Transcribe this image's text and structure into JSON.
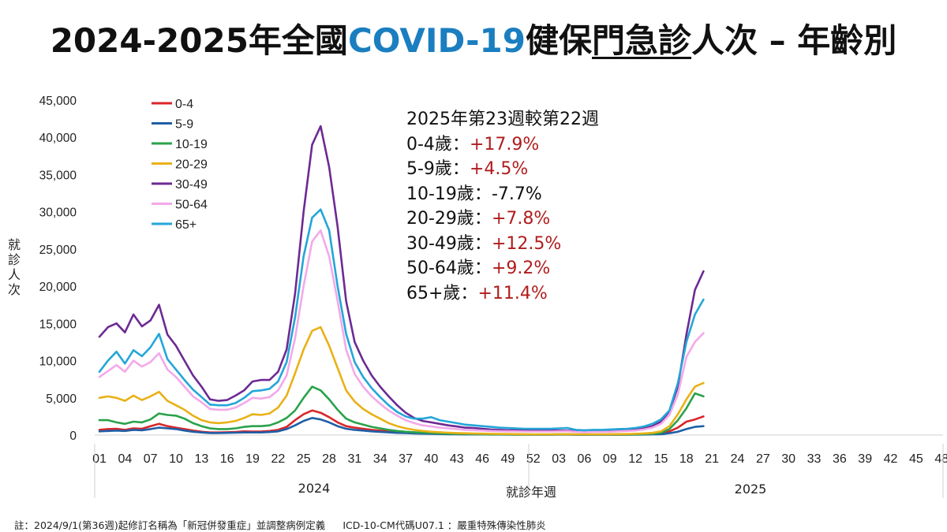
{
  "title": {
    "part1": "2024-2025年全國",
    "part2": "COVID-19",
    "part3": "健保",
    "part4": "門急診",
    "part5": "人次 – 年齡別"
  },
  "annotation": {
    "heading": "2025年第23週較第22週",
    "rows": [
      {
        "label": "0-4歲：",
        "value": "+17.9%",
        "color": "#b01c1c"
      },
      {
        "label": "5-9歲：",
        "value": "+4.5%",
        "color": "#b01c1c"
      },
      {
        "label": "10-19歲：",
        "value": "-7.7%",
        "color": "#111111"
      },
      {
        "label": "20-29歲：",
        "value": "+7.8%",
        "color": "#b01c1c"
      },
      {
        "label": "30-49歲：",
        "value": "+12.5%",
        "color": "#b01c1c"
      },
      {
        "label": "50-64歲：",
        "value": "+9.2%",
        "color": "#b01c1c"
      },
      {
        "label": "65+歲：",
        "value": "+11.4%",
        "color": "#b01c1c"
      }
    ]
  },
  "footnote": {
    "left": "註：2024/9/1(第36週)起修訂名稱為「新冠併發重症」並調整病例定義",
    "right": "ICD-10-CM代碼U07.1 ：嚴重特殊傳染性肺炎"
  },
  "chart_data": {
    "type": "line",
    "ylabel": "就診人次",
    "xlabel": "就診年週",
    "ylim": [
      0,
      45000
    ],
    "yticks": [
      0,
      5000,
      10000,
      15000,
      20000,
      25000,
      30000,
      35000,
      40000,
      45000
    ],
    "ytick_labels": [
      "0",
      "5,000",
      "10,000",
      "15,000",
      "20,000",
      "25,000",
      "30,000",
      "35,000",
      "40,000",
      "45,000"
    ],
    "xtick_labels": [
      "01",
      "04",
      "07",
      "10",
      "13",
      "16",
      "19",
      "22",
      "25",
      "28",
      "31",
      "34",
      "37",
      "40",
      "43",
      "46",
      "49",
      "52",
      "03",
      "06",
      "09",
      "12",
      "15",
      "18",
      "21",
      "24",
      "27",
      "30",
      "33",
      "36",
      "39",
      "42",
      "45",
      "48"
    ],
    "year_labels": [
      "2024",
      "2025"
    ],
    "legend_position": "top-left",
    "series": [
      {
        "name": "0-4",
        "color": "#d9262b",
        "values": [
          700,
          800,
          850,
          700,
          900,
          850,
          1200,
          1500,
          1200,
          1000,
          800,
          600,
          450,
          350,
          350,
          380,
          420,
          500,
          480,
          480,
          550,
          700,
          1100,
          2000,
          2800,
          3300,
          3000,
          2400,
          1700,
          1200,
          1000,
          850,
          700,
          600,
          500,
          400,
          350,
          300,
          250,
          200,
          180,
          150,
          130,
          120,
          110,
          100,
          90,
          80,
          80,
          70,
          70,
          70,
          70,
          70,
          80,
          80,
          60,
          50,
          60,
          60,
          60,
          60,
          60,
          80,
          100,
          130,
          200,
          500,
          1000,
          1800,
          2100,
          2500
        ]
      },
      {
        "name": "5-9",
        "color": "#1f5fa6",
        "values": [
          500,
          550,
          600,
          550,
          700,
          650,
          800,
          1000,
          900,
          800,
          600,
          450,
          350,
          280,
          280,
          300,
          320,
          350,
          350,
          350,
          400,
          500,
          800,
          1300,
          1900,
          2300,
          2100,
          1700,
          1200,
          850,
          700,
          600,
          500,
          430,
          360,
          300,
          260,
          220,
          190,
          160,
          140,
          120,
          110,
          100,
          90,
          80,
          70,
          70,
          60,
          60,
          60,
          60,
          60,
          60,
          60,
          60,
          50,
          40,
          50,
          50,
          50,
          50,
          50,
          60,
          70,
          90,
          120,
          250,
          450,
          800,
          1100,
          1200
        ]
      },
      {
        "name": "10-19",
        "color": "#2aa24a",
        "values": [
          2000,
          2000,
          1700,
          1500,
          1800,
          1700,
          2100,
          2900,
          2700,
          2600,
          2200,
          1600,
          1200,
          900,
          800,
          800,
          900,
          1100,
          1200,
          1200,
          1300,
          1700,
          2300,
          3300,
          5000,
          6500,
          6000,
          4800,
          3400,
          2200,
          1700,
          1400,
          1100,
          900,
          700,
          550,
          450,
          380,
          320,
          260,
          220,
          190,
          170,
          150,
          130,
          110,
          100,
          90,
          80,
          80,
          70,
          70,
          70,
          70,
          80,
          90,
          70,
          60,
          70,
          70,
          70,
          80,
          80,
          100,
          130,
          180,
          300,
          800,
          2000,
          3600,
          5600,
          5200
        ]
      },
      {
        "name": "20-29",
        "color": "#e9b117",
        "values": [
          5000,
          5200,
          5000,
          4600,
          5300,
          4700,
          5200,
          5800,
          4600,
          4000,
          3400,
          2600,
          2000,
          1700,
          1600,
          1700,
          1900,
          2300,
          2800,
          2700,
          2900,
          3700,
          5300,
          8300,
          11500,
          14000,
          14500,
          12000,
          9000,
          6000,
          4500,
          3500,
          2800,
          2200,
          1600,
          1200,
          900,
          700,
          550,
          450,
          380,
          320,
          280,
          240,
          210,
          190,
          170,
          150,
          140,
          130,
          120,
          110,
          110,
          110,
          120,
          130,
          110,
          100,
          110,
          110,
          120,
          130,
          140,
          170,
          220,
          300,
          500,
          1200,
          2800,
          4800,
          6500,
          7000
        ]
      },
      {
        "name": "30-49",
        "color": "#6c2a93",
        "values": [
          13200,
          14500,
          15000,
          13800,
          16200,
          14600,
          15400,
          17500,
          13500,
          12000,
          10000,
          8000,
          6500,
          4800,
          4600,
          4700,
          5300,
          6000,
          7200,
          7400,
          7400,
          8500,
          11500,
          19000,
          30000,
          39000,
          41500,
          36000,
          28000,
          18000,
          12500,
          10000,
          8000,
          6500,
          5200,
          4000,
          3000,
          2300,
          1900,
          1700,
          1500,
          1300,
          1150,
          1000,
          950,
          850,
          750,
          700,
          650,
          650,
          600,
          600,
          600,
          600,
          600,
          600,
          500,
          450,
          500,
          500,
          550,
          600,
          650,
          700,
          900,
          1200,
          1800,
          3200,
          6500,
          13500,
          19500,
          22000
        ]
      },
      {
        "name": "50-64",
        "color": "#f3a9e9",
        "values": [
          7800,
          8600,
          9400,
          8500,
          10000,
          9200,
          9800,
          11000,
          8800,
          7800,
          6500,
          5200,
          4400,
          3500,
          3400,
          3400,
          3700,
          4300,
          5000,
          4900,
          5100,
          6000,
          8000,
          13000,
          20000,
          26000,
          27500,
          24000,
          18000,
          11500,
          8200,
          6500,
          5200,
          4200,
          3300,
          2600,
          2000,
          1600,
          1300,
          1150,
          1000,
          900,
          800,
          700,
          650,
          600,
          550,
          520,
          500,
          500,
          480,
          480,
          480,
          480,
          500,
          520,
          420,
          380,
          420,
          420,
          450,
          500,
          550,
          600,
          750,
          1000,
          1500,
          2700,
          5500,
          10500,
          12500,
          13700
        ]
      },
      {
        "name": "65+",
        "color": "#24a6d8",
        "values": [
          8500,
          10000,
          11200,
          9600,
          11400,
          10600,
          11800,
          13600,
          10200,
          8800,
          7400,
          6100,
          5100,
          4100,
          4000,
          4000,
          4300,
          5000,
          5900,
          6000,
          6200,
          7200,
          9800,
          15800,
          24000,
          29200,
          30300,
          27500,
          20000,
          13600,
          9800,
          7800,
          6300,
          5100,
          4000,
          3100,
          2500,
          2200,
          2200,
          2400,
          2000,
          1800,
          1600,
          1400,
          1300,
          1200,
          1100,
          1000,
          950,
          900,
          850,
          850,
          850,
          850,
          900,
          950,
          700,
          650,
          700,
          700,
          750,
          800,
          850,
          950,
          1150,
          1500,
          2100,
          3300,
          7000,
          12500,
          16200,
          18200
        ]
      }
    ]
  }
}
